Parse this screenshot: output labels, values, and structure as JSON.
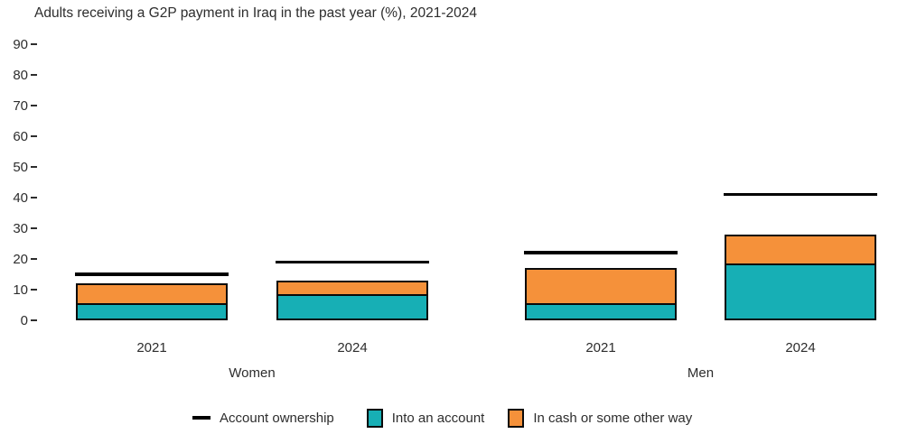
{
  "chart_data": {
    "type": "bar",
    "stacked": true,
    "title": "Adults receiving a G2P payment in Iraq in the past year (%), 2021-2024",
    "xlabel": "",
    "ylabel": "",
    "ylim": [
      0,
      90
    ],
    "ytick_step": 10,
    "yticks": [
      0,
      10,
      20,
      30,
      40,
      50,
      60,
      70,
      80,
      90
    ],
    "grid": false,
    "legend_position": "bottom",
    "categories": [
      "2021",
      "2024",
      "2021",
      "2024"
    ],
    "groups": [
      {
        "label": "Women",
        "category_indexes": [
          0,
          1
        ]
      },
      {
        "label": "Men",
        "category_indexes": [
          2,
          3
        ]
      }
    ],
    "series": [
      {
        "name": "Into an account",
        "role": "bar-segment",
        "color": "#17AFB5",
        "values": [
          5,
          8,
          5,
          18
        ]
      },
      {
        "name": "In cash or some other way",
        "role": "bar-segment",
        "color": "#F5913A",
        "values": [
          7,
          5,
          12,
          10
        ]
      },
      {
        "name": "Account ownership",
        "role": "reference-line",
        "color": "#000000",
        "values": [
          15,
          19,
          22,
          41
        ]
      }
    ],
    "bar_totals": [
      12,
      13,
      17,
      28
    ]
  },
  "colors": {
    "into_account": "#17AFB5",
    "cash_other": "#F5913A",
    "ownership_line": "#000000",
    "text": "#2d2d2d",
    "background": "#ffffff"
  }
}
